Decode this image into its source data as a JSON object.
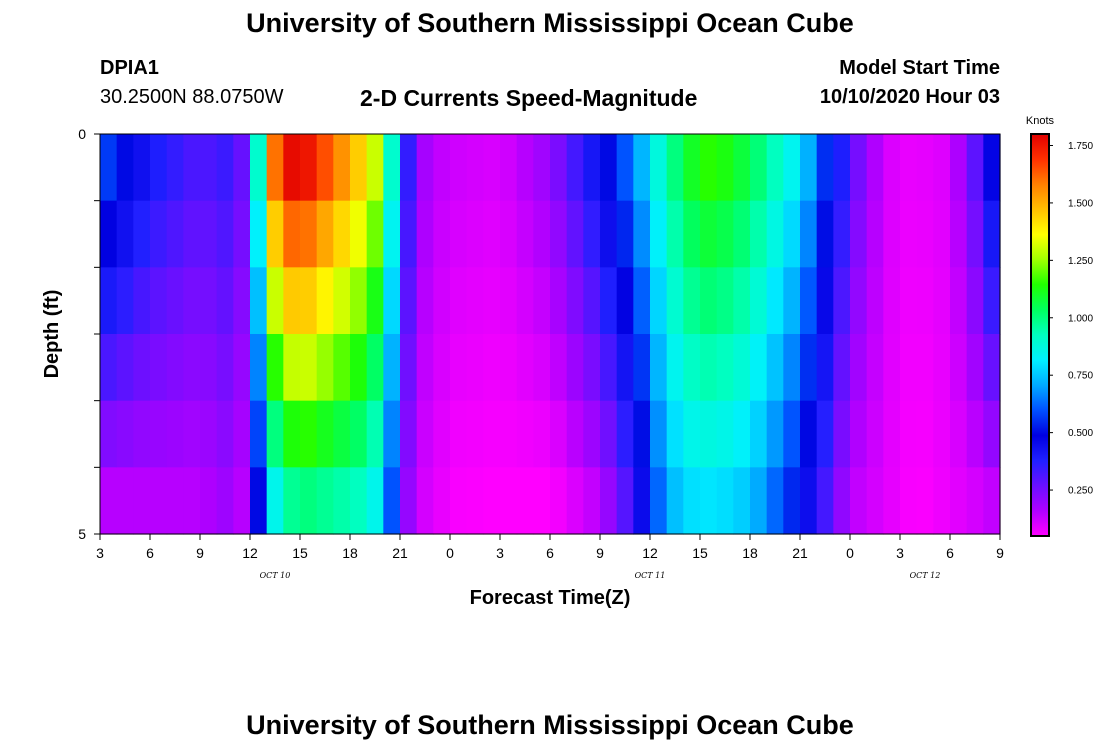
{
  "header": {
    "title_top": "University of Southern Mississippi Ocean Cube",
    "title_bottom": "University of Southern Mississippi Ocean Cube",
    "station": "DPIA1",
    "coords": "30.2500N 88.0750W",
    "plot_title": "2-D Currents Speed-Magnitude",
    "model_start_label": "Model Start Time",
    "model_start_value": "10/10/2020 Hour 03"
  },
  "colors": {
    "palette_low_to_high": [
      "#ff00ff",
      "#b000ff",
      "#6a10ff",
      "#2020ff",
      "#0000e0",
      "#0050ff",
      "#00aaff",
      "#00f0ff",
      "#00ffc0",
      "#00ff60",
      "#20ff00",
      "#a0ff00",
      "#ffff00",
      "#ffc000",
      "#ff8000",
      "#ff3000",
      "#e00000"
    ]
  },
  "chart_data": {
    "type": "heatmap",
    "xlabel": "Forecast Time(Z)",
    "ylabel": "Depth (ft)",
    "x_start_hour": 3,
    "x_end_hour": 57,
    "x_tick_labels": [
      "3",
      "6",
      "9",
      "12",
      "15",
      "18",
      "21",
      "0",
      "3",
      "6",
      "9",
      "12",
      "15",
      "18",
      "21",
      "0",
      "3",
      "6",
      "9"
    ],
    "date_labels": [
      {
        "text": "OCT 10",
        "hour": 13.5
      },
      {
        "text": "OCT 11",
        "hour": 36
      },
      {
        "text": "OCT 12",
        "hour": 52.5
      }
    ],
    "y_tick_labels": [
      "0",
      "5"
    ],
    "ylim": [
      0,
      5
    ],
    "depth_bins": [
      0,
      1,
      2,
      3,
      4,
      5
    ],
    "colorbar": {
      "title": "Knots",
      "min": 0.05,
      "max": 1.8,
      "ticks": [
        "0.250",
        "0.500",
        "0.750",
        "1.000",
        "1.250",
        "1.500",
        "1.750"
      ],
      "tick_values": [
        0.25,
        0.5,
        0.75,
        1.0,
        1.25,
        1.5,
        1.75
      ]
    },
    "time_hours": [
      3,
      6,
      9,
      11,
      12,
      12.5,
      13,
      13.5,
      14,
      15,
      16,
      17,
      18,
      19,
      20,
      20.5,
      21,
      21.5,
      22,
      23,
      24,
      27,
      30,
      33,
      35,
      36,
      37,
      38,
      39,
      40,
      42,
      45,
      48,
      49,
      50,
      51,
      52,
      54,
      56,
      57
    ],
    "speed_surface": [
      0.6,
      0.4,
      0.3,
      0.35,
      0.2,
      0.9,
      1.2,
      1.6,
      1.75,
      1.8,
      1.7,
      1.6,
      1.5,
      1.4,
      1.2,
      0.9,
      0.6,
      0.35,
      0.2,
      0.15,
      0.12,
      0.1,
      0.2,
      0.45,
      0.65,
      0.8,
      0.95,
      1.05,
      1.15,
      1.15,
      1.05,
      0.8,
      0.3,
      0.2,
      0.12,
      0.08,
      0.08,
      0.1,
      0.35,
      0.6
    ],
    "speed_bottom": [
      0.15,
      0.15,
      0.15,
      0.2,
      0.1,
      0.5,
      0.6,
      0.85,
      0.95,
      1.0,
      1.0,
      0.95,
      0.95,
      0.9,
      0.8,
      0.6,
      0.35,
      0.2,
      0.12,
      0.1,
      0.06,
      0.05,
      0.05,
      0.15,
      0.35,
      0.55,
      0.7,
      0.78,
      0.8,
      0.8,
      0.75,
      0.5,
      0.15,
      0.12,
      0.1,
      0.07,
      0.05,
      0.08,
      0.12,
      0.15
    ]
  }
}
